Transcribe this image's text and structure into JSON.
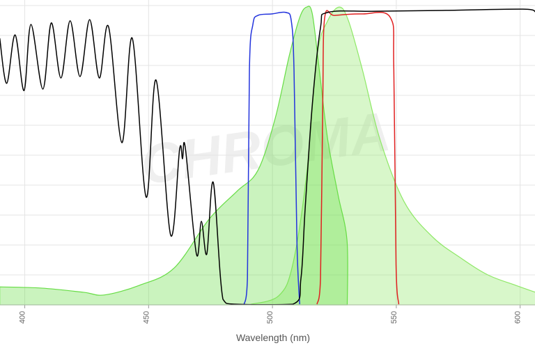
{
  "chart_data": {
    "type": "line",
    "watermark": "CHROMA",
    "x_label": "Wavelength (nm)",
    "xlim": [
      390,
      606
    ],
    "xticks": [
      400,
      450,
      500,
      550,
      600
    ],
    "ylim": [
      0,
      100
    ],
    "yticks": [
      0,
      10,
      20,
      30,
      40,
      50,
      60,
      70,
      80,
      90,
      100
    ],
    "grid": true,
    "series": [
      {
        "color": "#8ee866",
        "fill": true,
        "x": [
          491.3,
          502.5,
          508.2,
          513.8,
          518.0,
          522.3,
          527.0,
          530.7,
          536.3,
          543.4,
          553.2,
          564.5,
          575.8,
          587.0,
          598.3,
          606.2
        ],
        "values": [
          0.2,
          3.0,
          13.5,
          43.7,
          83.3,
          94.9,
          99.5,
          94.9,
          78.6,
          55.3,
          34.4,
          22.8,
          15.8,
          10.0,
          6.5,
          4.2
        ]
      },
      {
        "color": "#66dd44",
        "fill": true,
        "x": [
          389.9,
          406.8,
          423.7,
          432.1,
          446.2,
          460.3,
          474.4,
          485.6,
          494.1,
          501.1,
          506.8,
          511.0,
          513.8,
          516.1,
          518.9,
          522.3,
          526.5,
          530.1,
          530.2
        ],
        "values": [
          6.0,
          5.6,
          4.2,
          3.3,
          6.5,
          12.3,
          28.6,
          37.9,
          44.9,
          62.3,
          83.3,
          96.0,
          99.5,
          97.2,
          78.6,
          55.3,
          36.7,
          21.6,
          0
        ]
      },
      {
        "color": "#2233dd",
        "fill": false,
        "x": [
          488.5,
          489.9,
          490.7,
          492.1,
          494.1,
          499.7,
          505.4,
          507.6,
          508.7,
          509.9,
          511.0
        ],
        "values": [
          0,
          8.8,
          78.6,
          93.7,
          96.7,
          97.2,
          97.7,
          94.9,
          78.6,
          20.5,
          0.2
        ]
      },
      {
        "color": "#e02020",
        "fill": false,
        "x": [
          518.0,
          519.4,
          520.3,
          521.1,
          525.1,
          536.3,
          547.6,
          549.0,
          549.9,
          551.0
        ],
        "values": [
          0.2,
          8.8,
          67.0,
          96.0,
          96.7,
          97.2,
          96.0,
          78.6,
          13.5,
          0.2
        ]
      },
      {
        "color": "#000000",
        "fill": false,
        "x": [
          389.9,
          392.7,
          396.1,
          399.7,
          402.5,
          407.3,
          410.7,
          414.6,
          418.3,
          422.3,
          426.2,
          430.1,
          433.8,
          439.2,
          443.4,
          449.0,
          453.0,
          458.9,
          462.5,
          463.7,
          464.8,
          469.3,
          471.3,
          473.5,
          476.1,
          480.0,
          485.6,
          508.2,
          511.5,
          513.2,
          516.1,
          519.4,
          522.3,
          542.0,
          570.1,
          601.1,
          606.2
        ],
        "values": [
          89.1,
          74.0,
          90.2,
          71.6,
          93.7,
          72.1,
          94.2,
          75.8,
          94.9,
          76.3,
          95.3,
          75.8,
          93.0,
          54.2,
          89.1,
          36.0,
          75.1,
          23.3,
          51.9,
          48.8,
          52.6,
          17.0,
          27.9,
          17.0,
          40.9,
          1.9,
          0.2,
          0.2,
          8.8,
          32.1,
          67.0,
          92.6,
          97.7,
          98.1,
          98.4,
          98.8,
          97.9
        ]
      }
    ]
  }
}
